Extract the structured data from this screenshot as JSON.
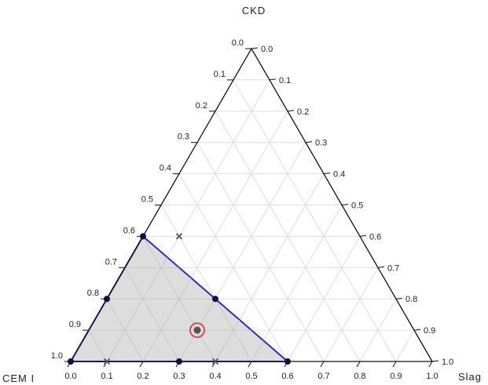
{
  "chart_data": {
    "type": "scatter",
    "subtype": "ternary",
    "corner_labels": {
      "top": "CKD",
      "left": "CEM I",
      "right": "Slag"
    },
    "tick_values": [
      0.0,
      0.1,
      0.2,
      0.3,
      0.4,
      0.5,
      0.6,
      0.7,
      0.8,
      0.9,
      1.0
    ],
    "tick_labels": [
      "0.0",
      "0.1",
      "0.2",
      "0.3",
      "0.4",
      "0.5",
      "0.6",
      "0.7",
      "0.8",
      "0.9",
      "1.0"
    ],
    "grid": true,
    "region": {
      "description_points": [
        {
          "cem": 1.0,
          "slag": 0.0,
          "ckd": 0.0
        },
        {
          "cem": 0.4,
          "slag": 0.6,
          "ckd": 0.0
        },
        {
          "cem": 0.6,
          "slag": 0.0,
          "ckd": 0.4
        }
      ],
      "fill_color": "#dadada",
      "edge_color": "#2a2ad0"
    },
    "points": [
      {
        "cem": 1.0,
        "slag": 0.0,
        "ckd": 0.0,
        "marker": "dot"
      },
      {
        "cem": 0.7,
        "slag": 0.3,
        "ckd": 0.0,
        "marker": "dot"
      },
      {
        "cem": 0.4,
        "slag": 0.6,
        "ckd": 0.0,
        "marker": "dot"
      },
      {
        "cem": 0.8,
        "slag": 0.0,
        "ckd": 0.2,
        "marker": "dot"
      },
      {
        "cem": 0.5,
        "slag": 0.3,
        "ckd": 0.2,
        "marker": "dot"
      },
      {
        "cem": 0.6,
        "slag": 0.0,
        "ckd": 0.4,
        "marker": "dot"
      },
      {
        "cem": 0.6,
        "slag": 0.3,
        "ckd": 0.1,
        "marker": "center"
      },
      {
        "cem": 0.5,
        "slag": 0.1,
        "ckd": 0.4,
        "marker": "cross"
      },
      {
        "cem": 0.9,
        "slag": 0.1,
        "ckd": 0.0,
        "marker": "cross"
      },
      {
        "cem": 0.6,
        "slag": 0.4,
        "ckd": 0.0,
        "marker": "cross"
      }
    ],
    "colors": {
      "dot": "#101040",
      "cross": "#555555",
      "center_dot": "#555555",
      "center_ring": "#d04040",
      "axis": "#111111",
      "grid": "#dddddd"
    }
  }
}
